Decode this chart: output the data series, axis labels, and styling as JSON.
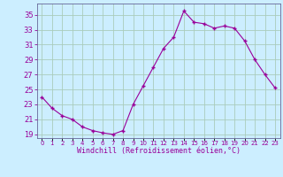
{
  "x": [
    0,
    1,
    2,
    3,
    4,
    5,
    6,
    7,
    8,
    9,
    10,
    11,
    12,
    13,
    14,
    15,
    16,
    17,
    18,
    19,
    20,
    21,
    22,
    23
  ],
  "y": [
    24.0,
    22.5,
    21.5,
    21.0,
    20.0,
    19.5,
    19.2,
    19.0,
    19.5,
    23.0,
    25.5,
    28.0,
    30.5,
    32.0,
    35.5,
    34.0,
    33.8,
    33.2,
    33.5,
    33.2,
    31.5,
    29.0,
    27.0,
    25.2
  ],
  "line_color": "#990099",
  "marker": "+",
  "marker_size": 3,
  "marker_linewidth": 1.0,
  "line_width": 0.8,
  "bg_color": "#cceeff",
  "grid_color": "#aaccbb",
  "xlabel": "Windchill (Refroidissement éolien,°C)",
  "xlabel_color": "#990099",
  "xlabel_fontsize": 6.0,
  "ylabel_ticks": [
    19,
    21,
    23,
    25,
    27,
    29,
    31,
    33,
    35
  ],
  "ytick_fontsize": 6.0,
  "xtick_labels": [
    "0",
    "1",
    "2",
    "3",
    "4",
    "5",
    "6",
    "7",
    "8",
    "9",
    "10",
    "11",
    "12",
    "13",
    "14",
    "15",
    "16",
    "17",
    "18",
    "19",
    "20",
    "21",
    "22",
    "23"
  ],
  "xtick_fontsize": 5.0,
  "ylim": [
    18.5,
    36.5
  ],
  "xlim": [
    -0.5,
    23.5
  ],
  "tick_color": "#990099",
  "axis_color": "#666699"
}
